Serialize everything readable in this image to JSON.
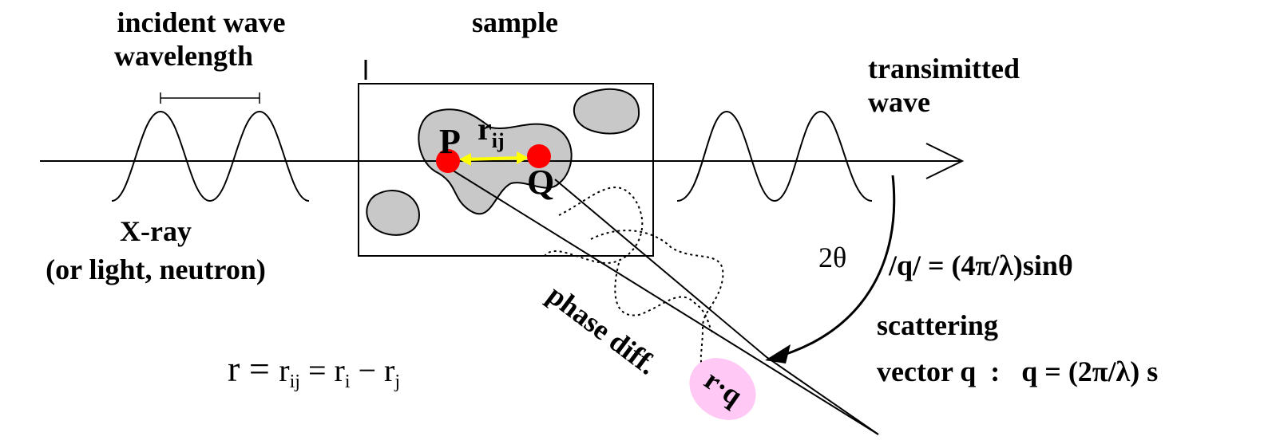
{
  "labels": {
    "incident": [
      "incident wave",
      "wavelength"
    ],
    "sample": "sample",
    "transmitted": [
      "transimitted",
      "wave"
    ],
    "source": [
      "X-ray",
      "(or light, neutron)"
    ],
    "point_p": "P",
    "point_q": "Q",
    "r_ij": {
      "base": "r",
      "sub": "ij"
    },
    "angle": "2θ",
    "q_magnitude": "/q/ = (4π/λ)sinθ",
    "phase": "phase diff.",
    "phase_term": "r·q",
    "scattering": [
      "scattering",
      "vector q  :   q = (2π/λ) s"
    ],
    "formula": {
      "lhs": "r = ",
      "r1": "r",
      "s1": "ij",
      "eq": " = r",
      "s2": "i",
      "minus": " − r",
      "s3": "j"
    }
  }
}
